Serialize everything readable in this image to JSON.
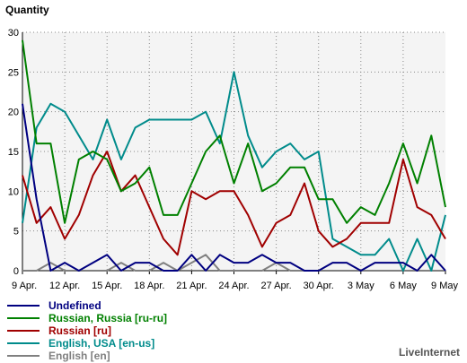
{
  "chart_data": {
    "type": "line",
    "title": "Quantity",
    "ylim": [
      0,
      30
    ],
    "yticks": [
      0,
      5,
      10,
      15,
      20,
      25,
      30
    ],
    "x": [
      "9 Apr.",
      "10 Apr.",
      "11 Apr.",
      "12 Apr.",
      "13 Apr.",
      "14 Apr.",
      "15 Apr.",
      "16 Apr.",
      "17 Apr.",
      "18 Apr.",
      "19 Apr.",
      "20 Apr.",
      "21 Apr.",
      "22 Apr.",
      "23 Apr.",
      "24 Apr.",
      "25 Apr.",
      "26 Apr.",
      "27 Apr.",
      "28 Apr.",
      "29 Apr.",
      "30 Apr.",
      "1 May",
      "2 May",
      "3 May",
      "4 May",
      "5 May",
      "6 May",
      "7 May",
      "8 May",
      "9 May"
    ],
    "xtick_labels": [
      "9 Apr.",
      "12 Apr.",
      "15 Apr.",
      "18 Apr.",
      "21 Apr.",
      "24 Apr.",
      "27 Apr.",
      "30 Apr.",
      "3 May",
      "6 May",
      "9 May"
    ],
    "grid": true,
    "series": [
      {
        "name": "Undefined",
        "color": "#000080",
        "values": [
          21,
          9,
          0,
          1,
          0,
          1,
          2,
          0,
          1,
          1,
          0,
          0,
          2,
          0,
          2,
          1,
          1,
          2,
          1,
          1,
          0,
          0,
          1,
          1,
          0,
          1,
          1,
          1,
          0,
          2,
          0
        ]
      },
      {
        "name": "Russian, Russia [ru-ru]",
        "color": "#008000",
        "values": [
          29,
          16,
          16,
          6,
          14,
          15,
          14,
          10,
          11,
          13,
          7,
          7,
          11,
          15,
          17,
          11,
          16,
          10,
          11,
          13,
          13,
          9,
          9,
          6,
          8,
          7,
          11,
          16,
          11,
          17,
          8
        ]
      },
      {
        "name": "Russian [ru]",
        "color": "#a00000",
        "values": [
          12,
          6,
          8,
          4,
          7,
          12,
          15,
          10,
          12,
          8,
          4,
          2,
          10,
          9,
          10,
          10,
          7,
          3,
          6,
          7,
          11,
          5,
          3,
          4,
          6,
          6,
          6,
          14,
          8,
          7,
          4
        ]
      },
      {
        "name": "English, USA [en-us]",
        "color": "#008b8b",
        "values": [
          6,
          18,
          21,
          20,
          17,
          14,
          19,
          14,
          18,
          19,
          19,
          19,
          19,
          20,
          16,
          25,
          17,
          13,
          15,
          16,
          14,
          15,
          4,
          3,
          2,
          2,
          4,
          0,
          4,
          0,
          7
        ]
      },
      {
        "name": "English [en]",
        "color": "#808080",
        "values": [
          0,
          0,
          1,
          0,
          0,
          0,
          0,
          1,
          0,
          0,
          1,
          0,
          1,
          2,
          0,
          0,
          0,
          0,
          1,
          0,
          0,
          0,
          0,
          0,
          0,
          0,
          0,
          0,
          0,
          0,
          0
        ]
      }
    ]
  },
  "brand": "LiveInternet"
}
